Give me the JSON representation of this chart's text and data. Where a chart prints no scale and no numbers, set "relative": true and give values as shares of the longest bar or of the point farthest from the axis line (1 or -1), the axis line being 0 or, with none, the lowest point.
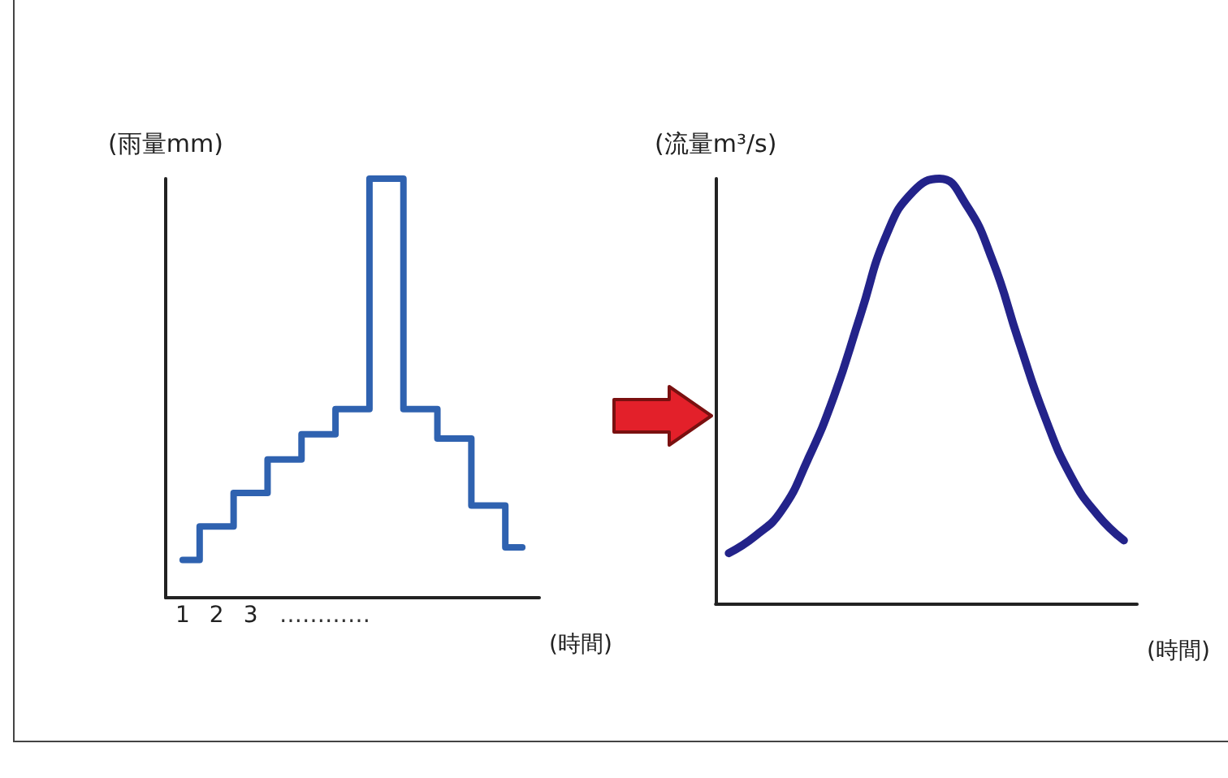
{
  "chart_data": [
    {
      "type": "step",
      "relative": true,
      "ylabel": "(雨量mm)",
      "xlabel": "(時間)",
      "categories": [
        "1",
        "2",
        "3",
        null,
        null,
        null,
        null,
        null,
        null,
        null,
        null
      ],
      "color": "#2f62b0",
      "values": [
        0.09,
        0.17,
        0.25,
        0.33,
        0.39,
        0.45,
        1,
        0.45,
        0.38,
        0.22,
        0.12
      ],
      "annotations": [
        "…………"
      ],
      "grid": false,
      "marker": "none"
    },
    {
      "type": "line",
      "relative": true,
      "ylabel": "(流量m³/s)",
      "xlabel": "(時間)",
      "categories": [
        null,
        null,
        null,
        null,
        null,
        null,
        null,
        null,
        null,
        null,
        null,
        null,
        null,
        null,
        null,
        null
      ],
      "color": "#23238a",
      "values": [
        0.12,
        0.16,
        0.22,
        0.34,
        0.49,
        0.68,
        0.87,
        0.97,
        1,
        0.94,
        0.81,
        0.62,
        0.44,
        0.3,
        0.21,
        0.15
      ],
      "grid": false,
      "marker": "none"
    }
  ]
}
